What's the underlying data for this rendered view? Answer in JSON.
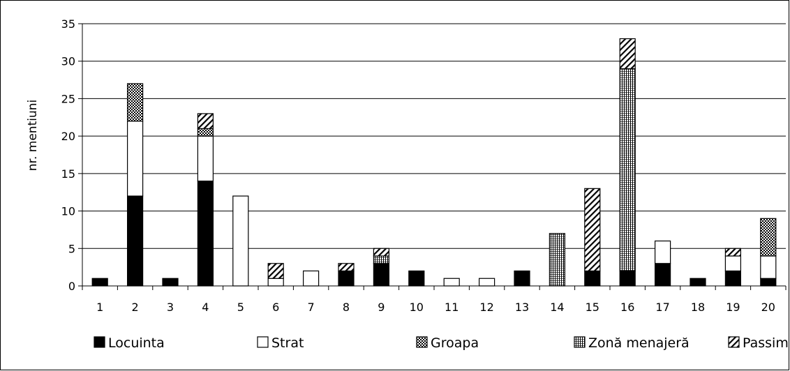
{
  "chart_data": {
    "type": "bar",
    "stacked": true,
    "title": "",
    "xlabel": "",
    "ylabel": "nr. mentiuni",
    "ylim": [
      0,
      35
    ],
    "yticks": [
      0,
      5,
      10,
      15,
      20,
      25,
      30,
      35
    ],
    "grid": "horizontal",
    "legend_position": "bottom",
    "categories": [
      "1",
      "2",
      "3",
      "4",
      "5",
      "6",
      "7",
      "8",
      "9",
      "10",
      "11",
      "12",
      "13",
      "14",
      "15",
      "16",
      "17",
      "18",
      "19",
      "20"
    ],
    "series": [
      {
        "name": "Locuinta",
        "pattern": "solid-black",
        "values": [
          1,
          12,
          1,
          14,
          0,
          0,
          0,
          2,
          3,
          2,
          0,
          0,
          2,
          0,
          2,
          2,
          3,
          1,
          2,
          1
        ]
      },
      {
        "name": "Strat",
        "pattern": "white",
        "values": [
          0,
          10,
          0,
          6,
          12,
          1,
          2,
          0,
          0,
          0,
          1,
          1,
          0,
          0,
          0,
          0,
          3,
          0,
          2,
          3
        ]
      },
      {
        "name": "Groapa",
        "pattern": "checker",
        "values": [
          0,
          5,
          0,
          1,
          0,
          0,
          0,
          0,
          0,
          0,
          0,
          0,
          0,
          0,
          0,
          0,
          0,
          0,
          0,
          5
        ]
      },
      {
        "name": "Zonă menajeră",
        "pattern": "vertical-lines",
        "values": [
          0,
          0,
          0,
          0,
          0,
          0,
          0,
          0,
          1,
          0,
          0,
          0,
          0,
          7,
          0,
          27,
          0,
          0,
          0,
          0
        ]
      },
      {
        "name": "Passim",
        "pattern": "diagonal",
        "values": [
          0,
          0,
          0,
          2,
          0,
          2,
          0,
          1,
          1,
          0,
          0,
          0,
          0,
          0,
          11,
          4,
          0,
          0,
          1,
          0
        ]
      }
    ]
  }
}
